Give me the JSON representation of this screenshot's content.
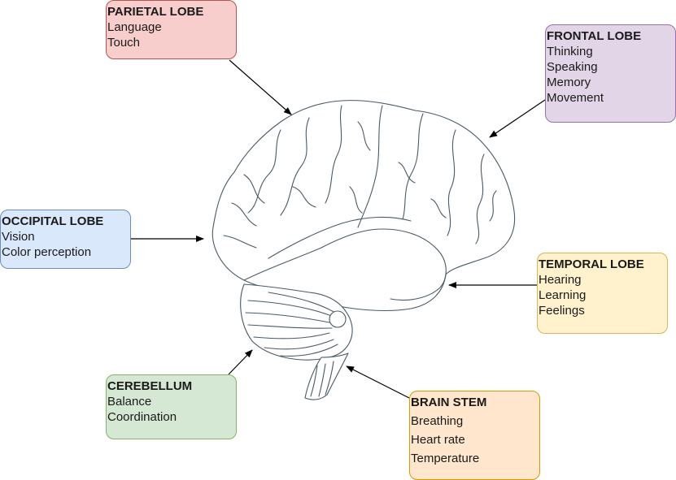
{
  "colors": {
    "parietal": {
      "fill": "#f8cecc",
      "stroke": "#b85450"
    },
    "frontal": {
      "fill": "#e1d5e7",
      "stroke": "#9673a6"
    },
    "occipital": {
      "fill": "#dae8fc",
      "stroke": "#6c8ebf"
    },
    "temporal": {
      "fill": "#fff2cc",
      "stroke": "#d6b656"
    },
    "cerebellum": {
      "fill": "#d5e8d4",
      "stroke": "#82b366"
    },
    "brainstem": {
      "fill": "#ffe6cc",
      "stroke": "#d79b00"
    },
    "brain_line": "#4a5a66",
    "arrow": "#000000"
  },
  "lobes": {
    "parietal": {
      "title": "PARIETAL LOBE",
      "items": [
        "Language",
        "Touch"
      ]
    },
    "frontal": {
      "title": "FRONTAL LOBE",
      "items": [
        "Thinking",
        "Speaking",
        "Memory",
        "Movement"
      ]
    },
    "occipital": {
      "title": "OCCIPITAL LOBE",
      "items": [
        "Vision",
        "Color perception"
      ]
    },
    "temporal": {
      "title": "TEMPORAL LOBE",
      "items": [
        "Hearing",
        "Learning",
        "Feelings"
      ]
    },
    "cerebellum": {
      "title": "CEREBELLUM",
      "items": [
        "Balance",
        "Coordination"
      ]
    },
    "brainstem": {
      "title": "BRAIN STEM",
      "items": [
        "Breathing",
        "Heart rate",
        "Temperature"
      ]
    }
  }
}
